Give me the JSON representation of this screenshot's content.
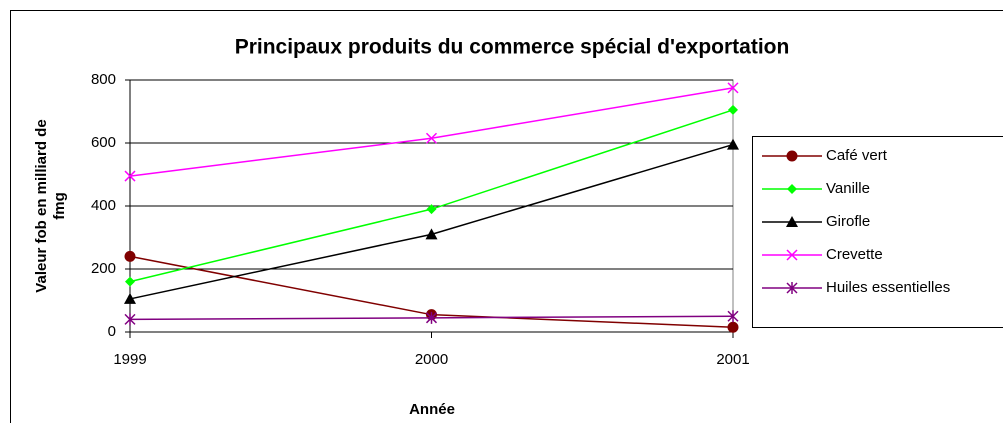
{
  "chart_data": {
    "type": "line",
    "title": "Principaux produits du commerce spécial d'exportation",
    "x_label": "Année",
    "y_label": [
      "Valeur fob en milliard de",
      "fmg"
    ],
    "categories": [
      "1999",
      "2000",
      "2001"
    ],
    "series": [
      {
        "name": "Café vert",
        "color": "#800000",
        "marker": "circle",
        "values": [
          240,
          55,
          15
        ]
      },
      {
        "name": "Vanille",
        "color": "#00ff00",
        "marker": "diamond",
        "values": [
          160,
          390,
          705
        ]
      },
      {
        "name": "Girofle",
        "color": "#000000",
        "marker": "triangle",
        "values": [
          105,
          310,
          595
        ]
      },
      {
        "name": "Crevette",
        "color": "#ff00ff",
        "marker": "x",
        "values": [
          495,
          615,
          775
        ]
      },
      {
        "name": "Huiles essentielles",
        "color": "#800080",
        "marker": "star",
        "values": [
          40,
          45,
          50
        ]
      }
    ],
    "ylim": [
      0,
      800
    ],
    "yticks": [
      0,
      200,
      400,
      600,
      800
    ],
    "grid": true,
    "legend": "right"
  }
}
